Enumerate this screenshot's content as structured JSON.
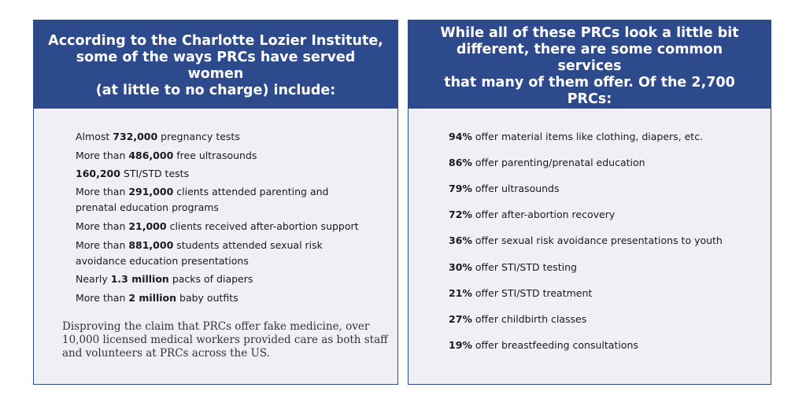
{
  "left": {
    "header": [
      "According to the Charlotte Lozier Institute,",
      "some of the ways PRCs have served women",
      "(at little to no charge) include:"
    ],
    "items": [
      {
        "pre": "Almost ",
        "bold": "732,000",
        "post": " pregnancy tests"
      },
      {
        "pre": "More than ",
        "bold": "486,000",
        "post": " free ultrasounds"
      },
      {
        "pre": "",
        "bold": "160,200",
        "post": " STI/STD tests"
      },
      {
        "pre": "More than ",
        "bold": "291,000",
        "post": " clients attended parenting and",
        "line2": "prenatal education programs"
      },
      {
        "pre": "More than ",
        "bold": "21,000",
        "post": " clients received after-abortion support"
      },
      {
        "pre": "More than ",
        "bold": "881,000",
        "post": " students attended sexual risk",
        "line2": "avoidance education presentations"
      },
      {
        "pre": "Nearly ",
        "bold": "1.3 million",
        "post": " packs of diapers"
      },
      {
        "pre": "More than ",
        "bold": "2 million",
        "post": " baby outfits"
      }
    ],
    "footnote": [
      "Disproving the claim that PRCs offer fake medicine, over",
      "10,000 licensed medical workers provided care as both staff",
      "and volunteers at PRCs across the US."
    ]
  },
  "right": {
    "header": [
      "While all of these PRCs look a little bit",
      "different, there are some common services",
      "that many of them offer. Of the 2,700 PRCs:"
    ],
    "items": [
      {
        "bold": "94%",
        "post": " offer material items like clothing, diapers, etc."
      },
      {
        "bold": "86%",
        "post": " offer parenting/prenatal education"
      },
      {
        "bold": "79%",
        "post": " offer ultrasounds"
      },
      {
        "bold": "72%",
        "post": " offer after-abortion recovery"
      },
      {
        "bold": "36%",
        "post": " offer sexual risk avoidance presentations to youth"
      },
      {
        "bold": "30%",
        "post": " offer STI/STD testing"
      },
      {
        "bold": "21%",
        "post": " offer STI/STD treatment"
      },
      {
        "bold": "27%",
        "post": " offer childbirth classes"
      },
      {
        "bold": "19%",
        "post": " offer breastfeeding consultations"
      }
    ]
  }
}
